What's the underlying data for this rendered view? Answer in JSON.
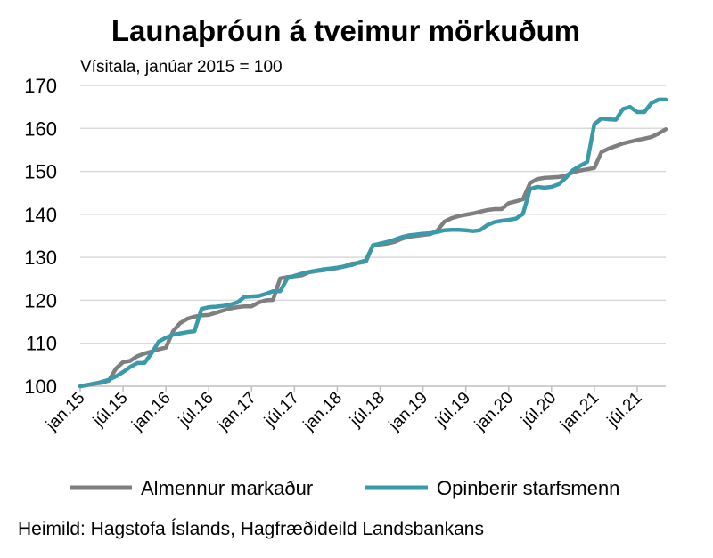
{
  "chart_data": {
    "type": "line",
    "title": "Launaþróun á tveimur mörkuðum",
    "subtitle": "Vísitala, janúar 2015 = 100",
    "source": "Heimild: Hagstofa Íslands, Hagfræðideild Landsbankans",
    "xlabel": "",
    "ylabel": "",
    "ylim": [
      100,
      170
    ],
    "yticks": [
      100,
      110,
      120,
      130,
      140,
      150,
      160,
      170
    ],
    "x_start": "jan.15",
    "x_count": 83,
    "x_tick_labels": [
      "jan.15",
      "júl.15",
      "jan.16",
      "júl.16",
      "jan.17",
      "júl.17",
      "jan.18",
      "júl.18",
      "jan.19",
      "júl.19",
      "jan.20",
      "júl.20",
      "jan.21",
      "júl.21"
    ],
    "grid": true,
    "legend_position": "bottom",
    "series": [
      {
        "name": "Almennur markaður",
        "color": "#7f7f7f",
        "values": [
          100.0,
          100.3,
          100.6,
          100.8,
          101.3,
          104.1,
          105.6,
          105.9,
          107.0,
          107.6,
          108.1,
          108.6,
          109.0,
          112.8,
          114.7,
          115.7,
          116.2,
          116.5,
          116.6,
          117.1,
          117.6,
          118.1,
          118.4,
          118.6,
          118.6,
          119.5,
          120.0,
          120.1,
          125.1,
          125.4,
          125.6,
          125.8,
          126.5,
          126.8,
          127.0,
          127.3,
          127.5,
          127.9,
          128.5,
          128.7,
          129.0,
          132.8,
          133.0,
          133.2,
          133.6,
          134.3,
          134.8,
          135.0,
          135.2,
          135.4,
          136.2,
          138.3,
          139.1,
          139.6,
          139.9,
          140.2,
          140.6,
          141.0,
          141.2,
          141.2,
          142.6,
          143.0,
          143.5,
          147.3,
          148.2,
          148.5,
          148.6,
          148.7,
          149.0,
          149.8,
          150.2,
          150.5,
          150.8,
          154.5,
          155.3,
          155.9,
          156.5,
          156.9,
          157.3,
          157.6,
          158.0,
          158.8,
          159.8
        ]
      },
      {
        "name": "Opinberir starfsmenn",
        "color": "#3a9aaa",
        "values": [
          100.0,
          100.3,
          100.6,
          101.0,
          101.5,
          102.3,
          103.3,
          104.5,
          105.4,
          105.4,
          107.7,
          110.4,
          111.3,
          112.0,
          112.3,
          112.6,
          112.8,
          118.0,
          118.4,
          118.5,
          118.7,
          119.0,
          119.5,
          120.8,
          120.9,
          121.0,
          121.5,
          122.1,
          122.1,
          125.1,
          125.7,
          126.2,
          126.6,
          126.9,
          127.2,
          127.4,
          127.6,
          127.9,
          128.2,
          128.8,
          129.3,
          132.8,
          133.2,
          133.6,
          134.1,
          134.7,
          135.1,
          135.3,
          135.5,
          135.6,
          135.9,
          136.3,
          136.4,
          136.4,
          136.3,
          136.1,
          136.3,
          137.5,
          138.2,
          138.5,
          138.7,
          139.0,
          140.1,
          145.9,
          146.4,
          146.2,
          146.4,
          147.0,
          148.5,
          150.3,
          151.3,
          152.2,
          161.0,
          162.3,
          162.1,
          162.0,
          164.5,
          165.0,
          163.8,
          163.8,
          165.9,
          166.7,
          166.7
        ]
      }
    ]
  }
}
